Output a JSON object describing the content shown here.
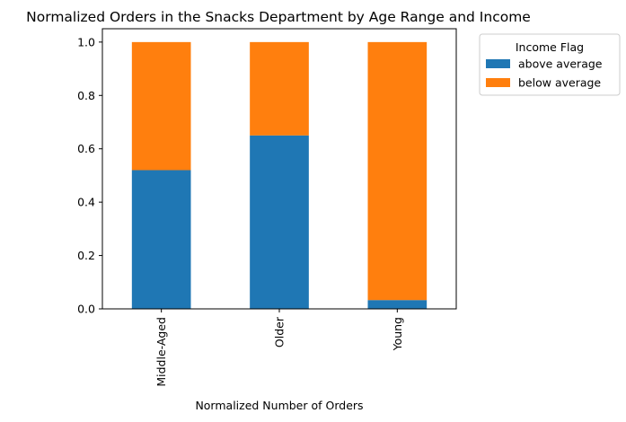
{
  "chart_data": {
    "type": "bar",
    "stacked": true,
    "title": "Normalized Orders in the Snacks Department by Age Range and Income",
    "xlabel": "Normalized Number of Orders",
    "ylabel": "",
    "categories": [
      "Middle-Aged",
      "Older",
      "Young"
    ],
    "series": [
      {
        "name": "above average",
        "color": "#1f77b4",
        "values": [
          0.52,
          0.65,
          0.033
        ]
      },
      {
        "name": "below average",
        "color": "#ff7f0e",
        "values": [
          0.48,
          0.35,
          0.967
        ]
      }
    ],
    "ylim": [
      0,
      1.05
    ],
    "yticks": [
      "0.0",
      "0.2",
      "0.4",
      "0.6",
      "0.8",
      "1.0"
    ],
    "ytick_values": [
      0.0,
      0.2,
      0.4,
      0.6,
      0.8,
      1.0
    ],
    "grid": false,
    "legend": {
      "title": "Income Flag",
      "placement": "outside-top-right"
    }
  }
}
